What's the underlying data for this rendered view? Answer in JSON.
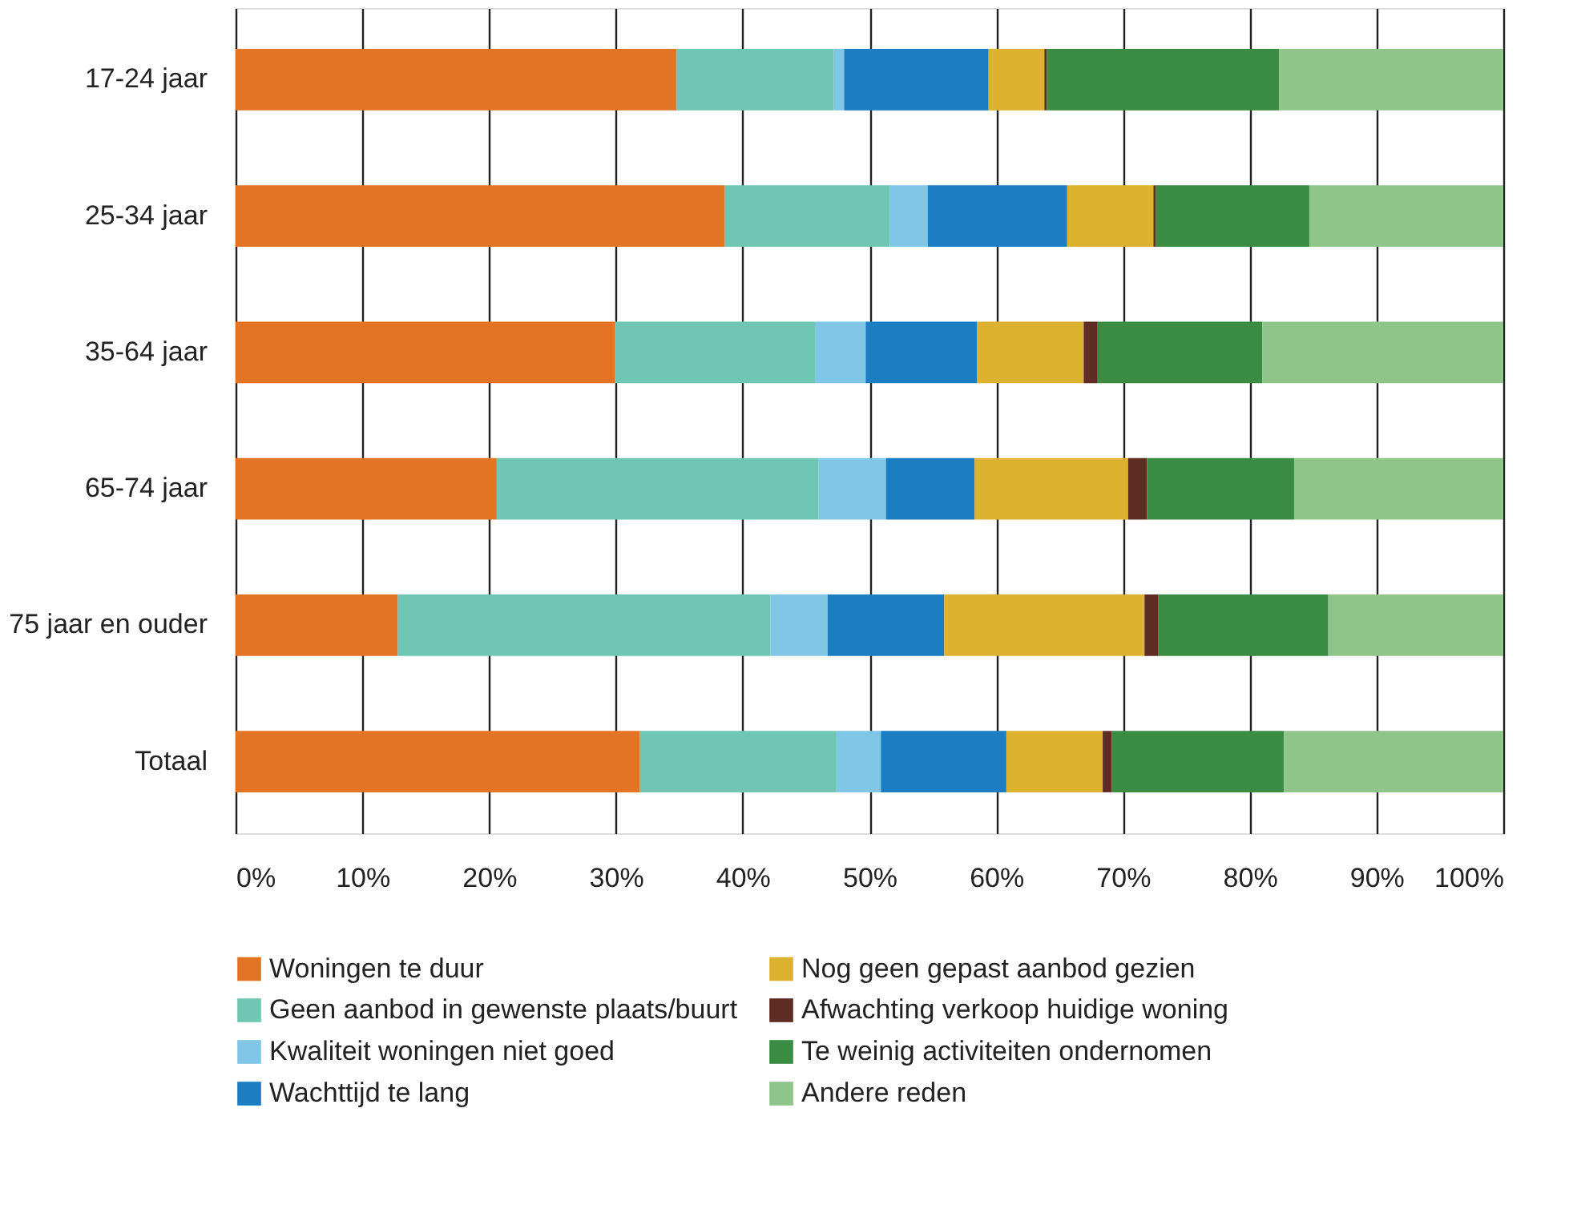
{
  "chart_data": {
    "type": "bar",
    "orientation": "horizontal",
    "stacked": true,
    "categories": [
      "17-24 jaar",
      "25-34 jaar",
      "35-64 jaar",
      "65-74 jaar",
      "75 jaar en ouder",
      "Totaal"
    ],
    "series": [
      {
        "name": "Woningen te duur",
        "color": "#e37424",
        "values": [
          34.8,
          38.6,
          29.9,
          20.6,
          12.8,
          31.9
        ]
      },
      {
        "name": "Geen aanbod in gewenste plaats/buurt",
        "color": "#6fc7b3",
        "values": [
          12.4,
          13.0,
          15.8,
          25.4,
          29.4,
          15.5
        ]
      },
      {
        "name": "Kwaliteit woningen niet goed",
        "color": "#80c6e6",
        "values": [
          0.8,
          3.0,
          4.0,
          5.3,
          4.5,
          3.5
        ]
      },
      {
        "name": "Wachttijd te lang",
        "color": "#1b7dc2",
        "values": [
          11.4,
          11.0,
          8.8,
          7.0,
          9.2,
          9.9
        ]
      },
      {
        "name": "Nog geen gepast aanbod gezien",
        "color": "#ddb22e",
        "values": [
          4.4,
          6.8,
          8.4,
          12.1,
          15.8,
          7.6
        ]
      },
      {
        "name": "Afwachting verkoop huidige woning",
        "color": "#5f2c24",
        "values": [
          0.2,
          0.2,
          1.1,
          1.5,
          1.1,
          0.7
        ]
      },
      {
        "name": "Te weinig activiteiten ondernomen",
        "color": "#3a8c43",
        "values": [
          18.3,
          12.1,
          13.0,
          11.6,
          13.4,
          13.6
        ]
      },
      {
        "name": "Andere reden",
        "color": "#8fc48a",
        "values": [
          17.7,
          15.3,
          19.0,
          16.5,
          13.8,
          17.3
        ]
      }
    ],
    "xlim": [
      0,
      100
    ],
    "xticks": [
      {
        "value": 0,
        "label": "0%"
      },
      {
        "value": 10,
        "label": "10%"
      },
      {
        "value": 20,
        "label": "20%"
      },
      {
        "value": 30,
        "label": "30%"
      },
      {
        "value": 40,
        "label": "40%"
      },
      {
        "value": 50,
        "label": "50%"
      },
      {
        "value": 60,
        "label": "60%"
      },
      {
        "value": 70,
        "label": "70%"
      },
      {
        "value": 80,
        "label": "80%"
      },
      {
        "value": 90,
        "label": "90%"
      },
      {
        "value": 100,
        "label": "100%"
      }
    ],
    "grid": "x",
    "legend": "bottom"
  }
}
